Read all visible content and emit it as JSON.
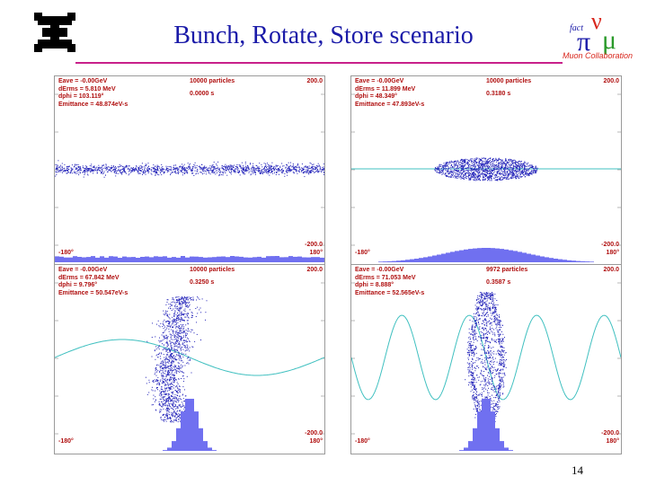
{
  "slide": {
    "title": "Bunch, Rotate, Store scenario",
    "page_number": "14",
    "logo_text": "Muon Collaboration",
    "logo_glyphs": "fact"
  },
  "panels": [
    {
      "eave": "Eave =   -0.00GeV",
      "derms": "dErms =  5.810 MeV",
      "dphi": "dphi = 103.119°",
      "emittance": "Emittance = 48.874eV-s",
      "particles": "10000 particles",
      "time": "0.0000 s",
      "ymax": "200.0",
      "ymin": "-200.0",
      "xmin": "-180°",
      "xmax": "180°",
      "phase_width": 1.0,
      "energy_spread": 0.08,
      "wave_amp": 0.0,
      "wave_cycles": 0,
      "histogram": "flat",
      "distribution": "uniform",
      "tilt": 0.0
    },
    {
      "eave": "Eave =   -0.00GeV",
      "derms": "dErms = 11.899 MeV",
      "dphi": "dphi = 48.349°",
      "emittance": "Emittance = 47.893eV-s",
      "particles": "10000 particles",
      "time": "0.3180 s",
      "ymax": "200.0",
      "ymin": "-200.0",
      "xmin": "-180°",
      "xmax": "180°",
      "phase_width": 0.62,
      "energy_spread": 0.17,
      "wave_amp": 0.0,
      "wave_cycles": 0,
      "histogram": "gaussian",
      "distribution": "ellipse",
      "tilt": 0.0
    },
    {
      "eave": "Eave =   -0.00GeV",
      "derms": "dErms = 67.842 MeV",
      "dphi": "dphi = 9.796°",
      "emittance": "Emittance = 50.547eV-s",
      "particles": "10000 particles",
      "time": "0.3250 s",
      "ymax": "200.0",
      "ymin": "-200.0",
      "xmin": "-180°",
      "xmax": "180°",
      "phase_width": 0.12,
      "energy_spread": 0.9,
      "wave_amp": 0.2,
      "wave_cycles": 1,
      "histogram": "narrow",
      "distribution": "scurve",
      "tilt": 0.0
    },
    {
      "eave": "Eave =   -0.00GeV",
      "derms": "dErms = 71.053 MeV",
      "dphi": "dphi = 8.888°",
      "emittance": "Emittance = 52.565eV-s",
      "particles": "9972 particles",
      "time": "0.3587 s",
      "ymax": "200.0",
      "ymin": "-200.0",
      "xmin": "-180°",
      "xmax": "180°",
      "phase_width": 0.1,
      "energy_spread": 0.95,
      "wave_amp": 0.47,
      "wave_cycles": 4,
      "histogram": "narrow",
      "distribution": "spiral",
      "tilt": 0.0
    }
  ],
  "colors": {
    "title": "#1a1aa8",
    "rule": "#c8208a",
    "particles": "#2020b8",
    "histogram": "#7070f0",
    "wave": "#40c0c0",
    "label": "#b01010"
  }
}
